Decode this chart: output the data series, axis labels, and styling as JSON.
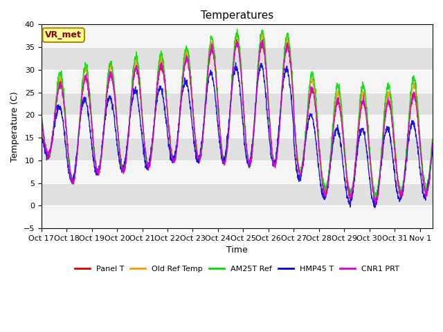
{
  "title": "Temperatures",
  "xlabel": "Time",
  "ylabel": "Temperature (C)",
  "ylim": [
    -5,
    40
  ],
  "yticks": [
    -5,
    0,
    5,
    10,
    15,
    20,
    25,
    30,
    35,
    40
  ],
  "xtick_labels": [
    "Oct 17",
    "Oct 18",
    "Oct 19",
    "Oct 20",
    "Oct 21",
    "Oct 22",
    "Oct 23",
    "Oct 24",
    "Oct 25",
    "Oct 26",
    "Oct 27",
    "Oct 28",
    "Oct 29",
    "Oct 30",
    "Oct 31",
    "Nov 1"
  ],
  "series": [
    {
      "label": "Panel T",
      "color": "#dd0000",
      "lw": 1.0
    },
    {
      "label": "Old Ref Temp",
      "color": "#ff9900",
      "lw": 1.0
    },
    {
      "label": "AM25T Ref",
      "color": "#00dd00",
      "lw": 1.0
    },
    {
      "label": "HMP45 T",
      "color": "#0000dd",
      "lw": 1.0
    },
    {
      "label": "CNR1 PRT",
      "color": "#dd00dd",
      "lw": 1.0
    }
  ],
  "bg_color": "#e8e8e8",
  "plot_bg_light": "#f0f0f0",
  "plot_bg_dark": "#e0e0e0",
  "annotation_text": "VR_met",
  "annotation_color": "#8b0000",
  "annotation_bg": "#ffff99",
  "title_fontsize": 11,
  "label_fontsize": 9,
  "tick_fontsize": 8
}
